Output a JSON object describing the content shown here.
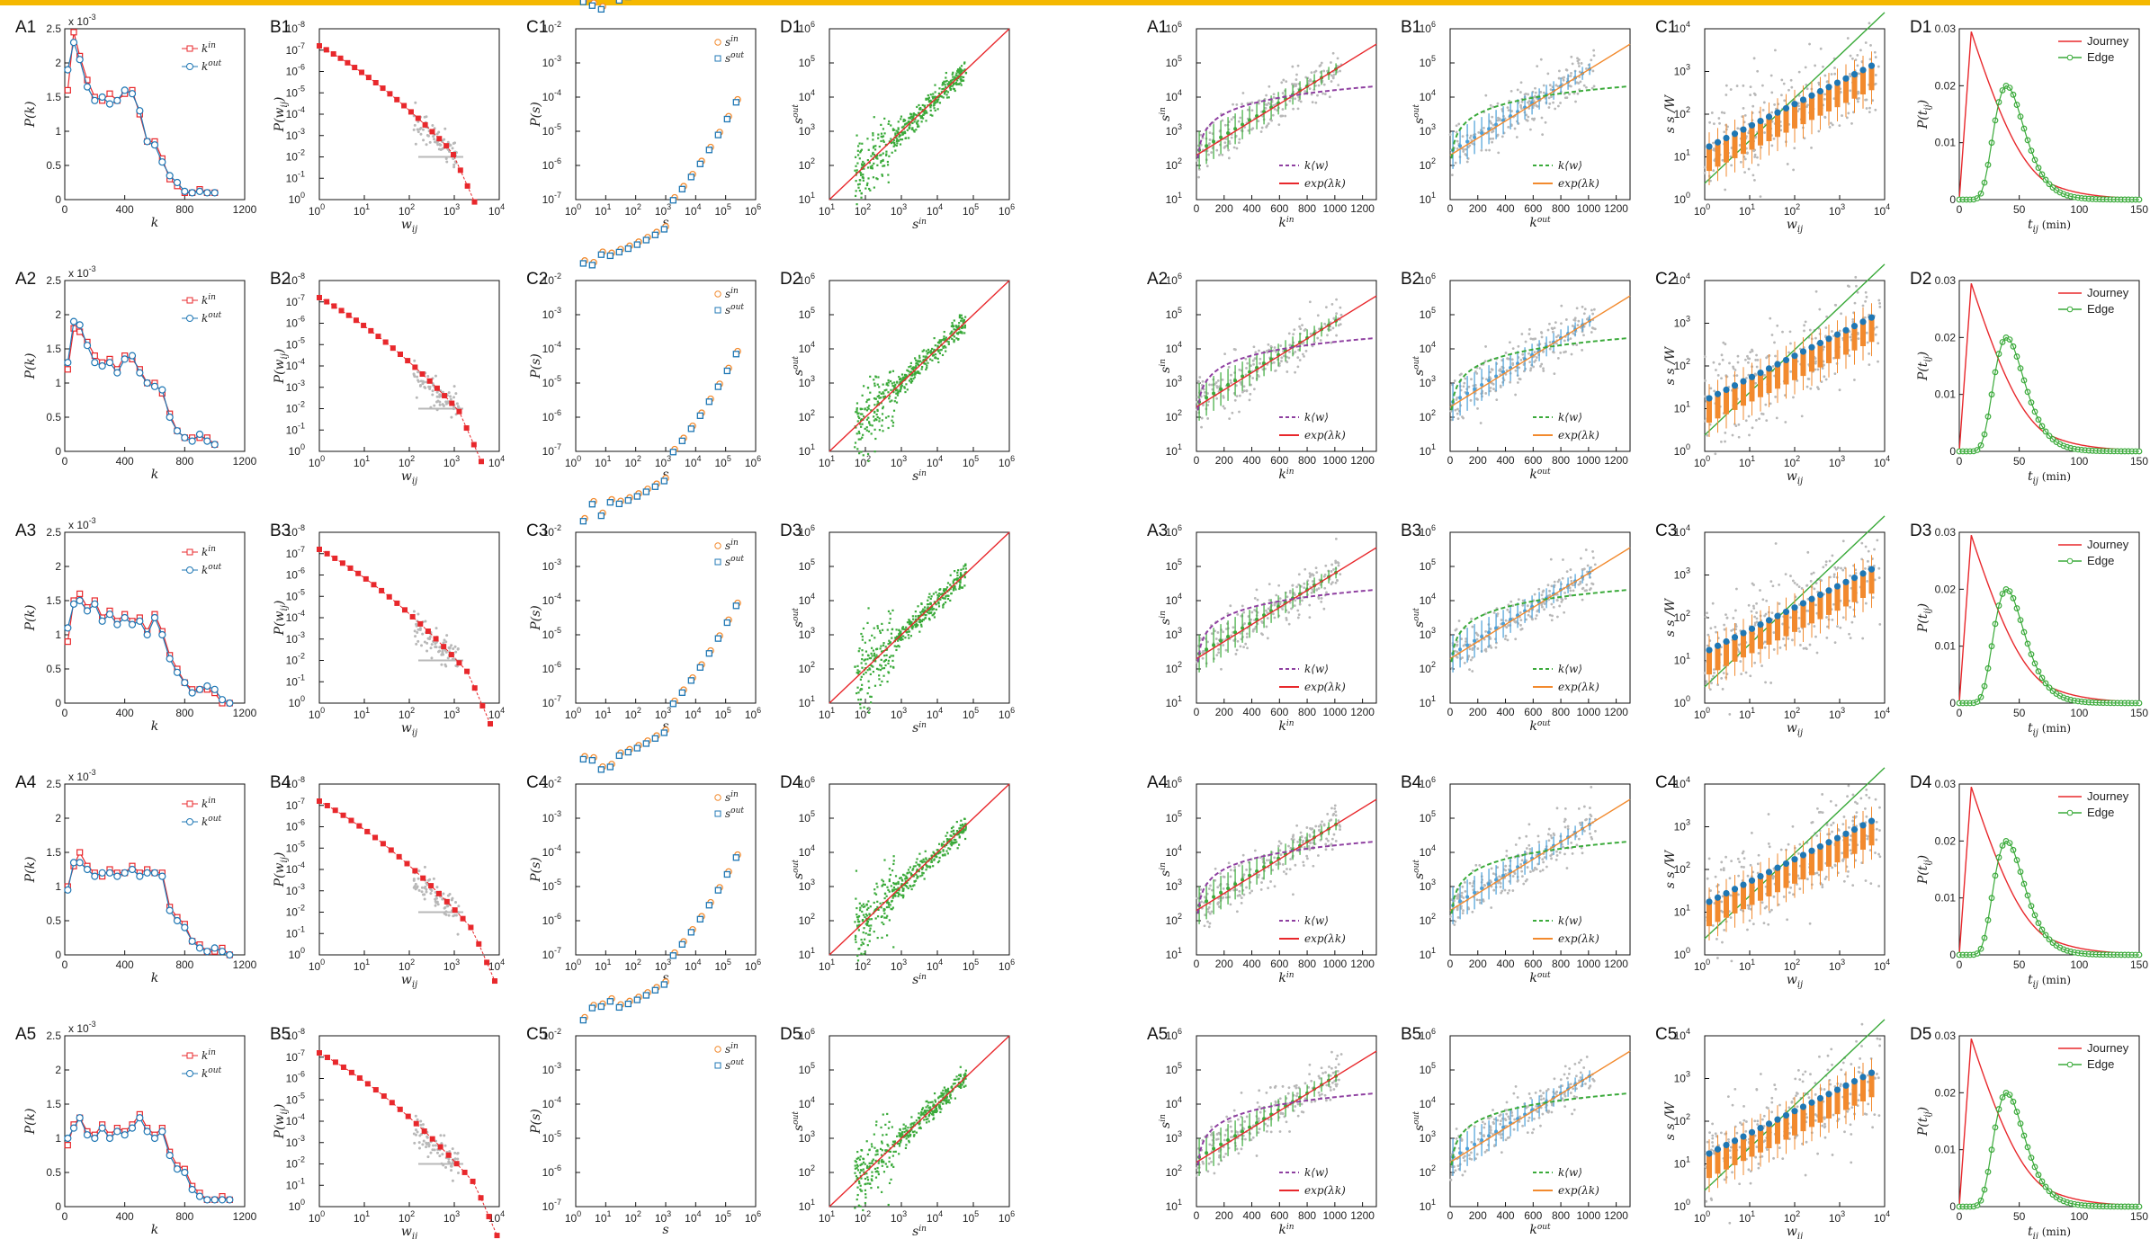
{
  "colors": {
    "in": "#e8282c",
    "out": "#1f77b4",
    "bin": "#4a9fd8",
    "orange": "#f28a2e",
    "green": "#3aaa3a",
    "purple": "#8e3fa0",
    "gray": "#b8b8b8",
    "topbar": "#f5b800"
  },
  "left_panels": {
    "A": {
      "title_prefix": "A",
      "xlabel": "k",
      "ylabel": "P(k)",
      "scale_note": "x 10",
      "scale_exp": "-3",
      "legend": [
        "k",
        "k"
      ],
      "legend_sup": [
        "in",
        "out"
      ],
      "xticks": [
        "0",
        "400",
        "800",
        "1200"
      ],
      "yticks": [
        "0",
        "0.5",
        "1",
        "1.5",
        "2",
        "2.5"
      ],
      "xlim": [
        0,
        1200
      ],
      "ylim": [
        0,
        2.5
      ]
    },
    "B": {
      "title_prefix": "B",
      "xlabel": "w",
      "xlabel_sub": "ij",
      "ylabel": "P(w",
      "ylabel_sub": "ij",
      "xticks": [
        "0",
        "1",
        "2",
        "3",
        "4"
      ],
      "yticks": [
        "0",
        "-1",
        "-2",
        "-3",
        "-4",
        "-5",
        "-6",
        "-7",
        "-8"
      ]
    },
    "C": {
      "title_prefix": "C",
      "xlabel": "s",
      "ylabel": "P(s)",
      "legend": [
        "s",
        "s"
      ],
      "legend_sup": [
        "in",
        "out"
      ],
      "xticks": [
        "0",
        "1",
        "2",
        "3",
        "4",
        "5",
        "6"
      ],
      "yticks": [
        "-2",
        "-3",
        "-4",
        "-5",
        "-6",
        "-7"
      ]
    },
    "D": {
      "title_prefix": "D",
      "xlabel": "s",
      "xlabel_sup": "in",
      "ylabel": "s",
      "ylabel_sup": "out",
      "xticks": [
        "1",
        "2",
        "3",
        "4",
        "5",
        "6"
      ],
      "yticks": [
        "1",
        "2",
        "3",
        "4",
        "5",
        "6"
      ]
    }
  },
  "right_panels": {
    "A": {
      "title_prefix": "A",
      "xlabel": "k",
      "xlabel_sup": "in",
      "ylabel": "s",
      "ylabel_sup": "in",
      "legend": [
        "k⟨w⟩",
        "exp(λk)"
      ],
      "xticks": [
        "0",
        "200",
        "400",
        "600",
        "800",
        "1000",
        "1200"
      ],
      "yticks": [
        "1",
        "2",
        "3",
        "4",
        "5",
        "6"
      ]
    },
    "B": {
      "title_prefix": "B",
      "xlabel": "k",
      "xlabel_sup": "out",
      "ylabel": "s",
      "ylabel_sup": "out",
      "legend": [
        "k⟨w⟩",
        "exp(λk)"
      ],
      "xticks": [
        "0",
        "200",
        "400",
        "600",
        "800",
        "1000",
        "1200"
      ],
      "yticks": [
        "1",
        "2",
        "3",
        "4",
        "5",
        "6"
      ]
    },
    "C": {
      "title_prefix": "C",
      "xlabel": "w",
      "xlabel_sub": "ij",
      "ylabel": "s s /W",
      "xticks": [
        "0",
        "1",
        "2",
        "3",
        "4"
      ],
      "yticks": [
        "0",
        "1",
        "2",
        "3",
        "4"
      ]
    },
    "D": {
      "title_prefix": "D",
      "xlabel": "t",
      "xlabel_sub": "ij",
      "xlabel_unit": "(min)",
      "ylabel": "P(t",
      "ylabel_sub": "ij",
      "legend": [
        "Journey",
        "Edge"
      ],
      "xticks": [
        "0",
        "50",
        "100",
        "150"
      ],
      "yticks": [
        "0",
        "0.01",
        "0.02",
        "0.03"
      ]
    }
  },
  "rows": [
    "1",
    "2",
    "3",
    "4",
    "5"
  ],
  "chart_data": [
    {
      "type": "line",
      "panel": "A1",
      "xlabel": "k",
      "ylabel": "P(k)",
      "xlim": [
        0,
        1200
      ],
      "ylim": [
        0,
        0.0025
      ],
      "series": [
        {
          "name": "k^in",
          "x": [
            20,
            60,
            100,
            150,
            200,
            250,
            300,
            350,
            400,
            450,
            500,
            550,
            600,
            650,
            700,
            750,
            800,
            850,
            900,
            950,
            1000
          ],
          "values": [
            1.6,
            2.45,
            2.1,
            1.75,
            1.5,
            1.45,
            1.55,
            1.45,
            1.55,
            1.6,
            1.25,
            0.85,
            0.85,
            0.6,
            0.3,
            0.2,
            0.1,
            0.1,
            0.15,
            0.1,
            0.1
          ]
        },
        {
          "name": "k^out",
          "x": [
            20,
            60,
            100,
            150,
            200,
            250,
            300,
            350,
            400,
            450,
            500,
            550,
            600,
            650,
            700,
            750,
            800,
            850,
            900,
            950,
            1000
          ],
          "values": [
            1.9,
            2.3,
            2.05,
            1.65,
            1.45,
            1.5,
            1.4,
            1.45,
            1.6,
            1.55,
            1.3,
            0.85,
            0.8,
            0.55,
            0.35,
            0.25,
            0.12,
            0.1,
            0.12,
            0.1,
            0.1
          ]
        }
      ]
    },
    {
      "type": "line",
      "panel": "A2",
      "xlim": [
        0,
        1200
      ],
      "ylim": [
        0,
        0.0025
      ],
      "series": [
        {
          "name": "k^in",
          "x": [
            20,
            60,
            100,
            150,
            200,
            250,
            300,
            350,
            400,
            450,
            500,
            550,
            600,
            650,
            700,
            750,
            800,
            850,
            900,
            950,
            1000
          ],
          "values": [
            1.2,
            1.8,
            1.75,
            1.6,
            1.4,
            1.3,
            1.35,
            1.2,
            1.4,
            1.35,
            1.2,
            1.0,
            1.0,
            0.85,
            0.55,
            0.3,
            0.2,
            0.2,
            0.2,
            0.2,
            0.1
          ]
        },
        {
          "name": "k^out",
          "x": [
            20,
            60,
            100,
            150,
            200,
            250,
            300,
            350,
            400,
            450,
            500,
            550,
            600,
            650,
            700,
            750,
            800,
            850,
            900,
            950,
            1000
          ],
          "values": [
            1.3,
            1.9,
            1.85,
            1.55,
            1.3,
            1.25,
            1.3,
            1.15,
            1.35,
            1.4,
            1.15,
            1.0,
            0.95,
            0.9,
            0.5,
            0.3,
            0.2,
            0.15,
            0.25,
            0.15,
            0.1
          ]
        }
      ]
    },
    {
      "type": "line",
      "panel": "A3",
      "xlim": [
        0,
        1200
      ],
      "ylim": [
        0,
        0.0025
      ],
      "series": [
        {
          "name": "k^in",
          "x": [
            20,
            60,
            100,
            150,
            200,
            250,
            300,
            350,
            400,
            450,
            500,
            550,
            600,
            650,
            700,
            750,
            800,
            850,
            900,
            950,
            1000,
            1050,
            1100
          ],
          "values": [
            0.9,
            1.5,
            1.6,
            1.4,
            1.5,
            1.25,
            1.35,
            1.2,
            1.3,
            1.2,
            1.25,
            1.05,
            1.3,
            1.05,
            0.7,
            0.5,
            0.3,
            0.2,
            0.2,
            0.2,
            0.15,
            0.0,
            0.0
          ]
        },
        {
          "name": "k^out",
          "x": [
            20,
            60,
            100,
            150,
            200,
            250,
            300,
            350,
            400,
            450,
            500,
            550,
            600,
            650,
            700,
            750,
            800,
            850,
            900,
            950,
            1000,
            1050,
            1100
          ],
          "values": [
            1.1,
            1.45,
            1.5,
            1.35,
            1.45,
            1.2,
            1.3,
            1.15,
            1.25,
            1.15,
            1.2,
            1.0,
            1.25,
            1.0,
            0.65,
            0.45,
            0.3,
            0.15,
            0.2,
            0.25,
            0.2,
            0.05,
            0.0
          ]
        }
      ]
    },
    {
      "type": "line",
      "panel": "A4",
      "xlim": [
        0,
        1200
      ],
      "ylim": [
        0,
        0.0025
      ],
      "series": [
        {
          "name": "k^in",
          "x": [
            20,
            60,
            100,
            150,
            200,
            250,
            300,
            350,
            400,
            450,
            500,
            550,
            600,
            650,
            700,
            750,
            800,
            850,
            900,
            950,
            1000,
            1050,
            1100
          ],
          "values": [
            1.0,
            1.3,
            1.5,
            1.3,
            1.2,
            1.15,
            1.25,
            1.2,
            1.2,
            1.3,
            1.2,
            1.25,
            1.2,
            1.2,
            0.7,
            0.55,
            0.45,
            0.2,
            0.15,
            0.05,
            0.05,
            0.1,
            0.0
          ]
        },
        {
          "name": "k^out",
          "x": [
            20,
            60,
            100,
            150,
            200,
            250,
            300,
            350,
            400,
            450,
            500,
            550,
            600,
            650,
            700,
            750,
            800,
            850,
            900,
            950,
            1000,
            1050,
            1100
          ],
          "values": [
            0.95,
            1.35,
            1.35,
            1.25,
            1.15,
            1.2,
            1.2,
            1.15,
            1.2,
            1.25,
            1.15,
            1.2,
            1.2,
            1.15,
            0.65,
            0.5,
            0.4,
            0.2,
            0.1,
            0.05,
            0.1,
            0.05,
            0.0
          ]
        }
      ]
    },
    {
      "type": "line",
      "panel": "A5",
      "xlim": [
        0,
        1200
      ],
      "ylim": [
        0,
        0.0025
      ],
      "series": [
        {
          "name": "k^in",
          "x": [
            20,
            60,
            100,
            150,
            200,
            250,
            300,
            350,
            400,
            450,
            500,
            550,
            600,
            650,
            700,
            750,
            800,
            850,
            900,
            950,
            1000,
            1050,
            1100
          ],
          "values": [
            0.9,
            1.2,
            1.3,
            1.1,
            1.05,
            1.2,
            1.05,
            1.15,
            1.1,
            1.2,
            1.35,
            1.15,
            1.05,
            1.15,
            0.8,
            0.6,
            0.55,
            0.3,
            0.2,
            0.1,
            0.1,
            0.15,
            0.1
          ]
        },
        {
          "name": "k^out",
          "x": [
            20,
            60,
            100,
            150,
            200,
            250,
            300,
            350,
            400,
            450,
            500,
            550,
            600,
            650,
            700,
            750,
            800,
            850,
            900,
            950,
            1000,
            1050,
            1100
          ],
          "values": [
            1.0,
            1.15,
            1.3,
            1.05,
            1.0,
            1.15,
            1.0,
            1.1,
            1.05,
            1.15,
            1.3,
            1.1,
            1.0,
            1.1,
            0.75,
            0.55,
            0.5,
            0.25,
            0.15,
            0.1,
            0.1,
            0.1,
            0.1
          ]
        }
      ]
    },
    {
      "type": "line",
      "panel": "D-right",
      "xlabel": "t_ij (min)",
      "ylabel": "P(t_ij)",
      "xlim": [
        0,
        150
      ],
      "ylim": [
        0,
        0.03
      ],
      "series": [
        {
          "name": "Journey",
          "peak_x": 10,
          "peak_y": 0.0295
        },
        {
          "name": "Edge",
          "peak_x": 40,
          "peak_y": 0.02
        }
      ]
    }
  ]
}
